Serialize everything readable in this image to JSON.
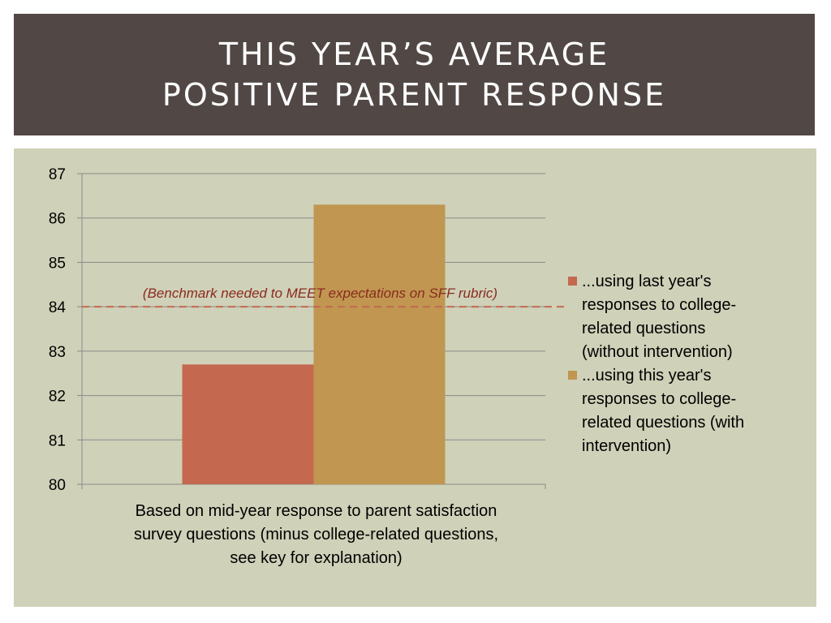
{
  "title": {
    "line1": "THIS YEAR’S AVERAGE",
    "line2": "POSITIVE PARENT RESPONSE"
  },
  "colors": {
    "title_bg": "#514846",
    "panel_bg": "#cfd1b8",
    "series1": "#c46950",
    "series2": "#c09650",
    "benchmark": "#c46950"
  },
  "chart_data": {
    "type": "bar",
    "categories": [
      "Based on mid-year response to parent satisfaction survey questions (minus college-related questions, see key for explanation)"
    ],
    "series": [
      {
        "name": "...using last year's responses to college-related questions (without intervention)",
        "values": [
          82.7
        ]
      },
      {
        "name": "...using this year's responses to college-related questions (with intervention)",
        "values": [
          86.3
        ]
      }
    ],
    "ylim": [
      80,
      87
    ],
    "yticks": [
      "80",
      "81",
      "82",
      "83",
      "84",
      "85",
      "86",
      "87"
    ],
    "grid": true,
    "legend_position": "right",
    "benchmark": {
      "value": 84,
      "label": "(Benchmark needed to MEET expectations on SFF rubric)"
    }
  },
  "legend": {
    "item1_lines": [
      "...using last year's",
      "responses to college-",
      "related questions",
      "(without intervention)"
    ],
    "item2_lines": [
      "...using this year's",
      "responses to college-",
      "related questions (with",
      "intervention)"
    ]
  },
  "xaxis": {
    "category_lines": [
      "Based on mid-year response to parent satisfaction",
      "survey questions (minus college-related questions,",
      "see key for explanation)"
    ]
  }
}
